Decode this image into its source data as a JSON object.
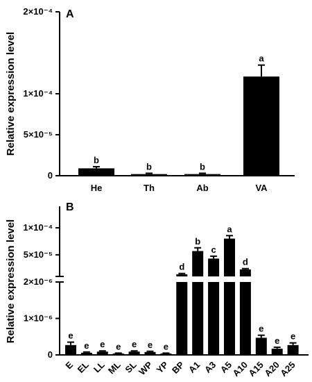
{
  "chart_data": [
    {
      "type": "bar",
      "panel_label": "A",
      "ylabel": "Relative expression level",
      "categories": [
        "He",
        "Th",
        "Ab",
        "VA"
      ],
      "values": [
        9e-06,
        2e-06,
        2e-06,
        0.000121
      ],
      "errors": [
        2e-06,
        1e-06,
        1e-06,
        1.4e-05
      ],
      "significance": [
        "b",
        "b",
        "b",
        "a"
      ],
      "ylim": [
        0,
        0.0002
      ],
      "yticks": [
        0,
        5e-05,
        0.0001,
        0.0002
      ],
      "ytick_labels": [
        "0",
        "5×10⁻⁵",
        "1×10⁻⁴",
        "2×10⁻⁴"
      ],
      "grid": false,
      "bar_color": "#000000"
    },
    {
      "type": "bar",
      "panel_label": "B",
      "ylabel": "Relative expression level",
      "axis_break": true,
      "categories": [
        "E",
        "EL",
        "LL",
        "ML",
        "SL",
        "WP",
        "YP",
        "BP",
        "A1",
        "A3",
        "A5",
        "A10",
        "A15",
        "A20",
        "A25"
      ],
      "values": [
        2.7e-07,
        6e-08,
        9e-08,
        4e-08,
        9e-08,
        8e-08,
        4e-08,
        1.4e-05,
        5.7e-05,
        4.3e-05,
        8e-05,
        2.3e-05,
        4.7e-07,
        1.7e-07,
        2.7e-07
      ],
      "errors": [
        8e-08,
        2e-08,
        2e-08,
        1e-08,
        2e-08,
        2e-08,
        1e-08,
        1.5e-06,
        6e-06,
        4.5e-06,
        5.5e-06,
        1.5e-06,
        7e-08,
        4e-08,
        6e-08
      ],
      "significance": [
        "e",
        "e",
        "e",
        "e",
        "e",
        "e",
        "e",
        "d",
        "b",
        "c",
        "a",
        "d",
        "e",
        "e",
        "e"
      ],
      "lower_segment": {
        "ylim": [
          0,
          2e-06
        ],
        "yticks": [
          0,
          1e-06,
          2e-06
        ],
        "ytick_labels": [
          "0",
          "1×10⁻⁶",
          "2×10⁻⁶"
        ]
      },
      "upper_segment": {
        "ylim": [
          1e-05,
          0.0001
        ],
        "yticks": [
          5e-05,
          0.0001
        ],
        "ytick_labels": [
          "5×10⁻⁵",
          "1×10⁻⁴"
        ]
      },
      "grid": false,
      "bar_color": "#000000"
    }
  ]
}
